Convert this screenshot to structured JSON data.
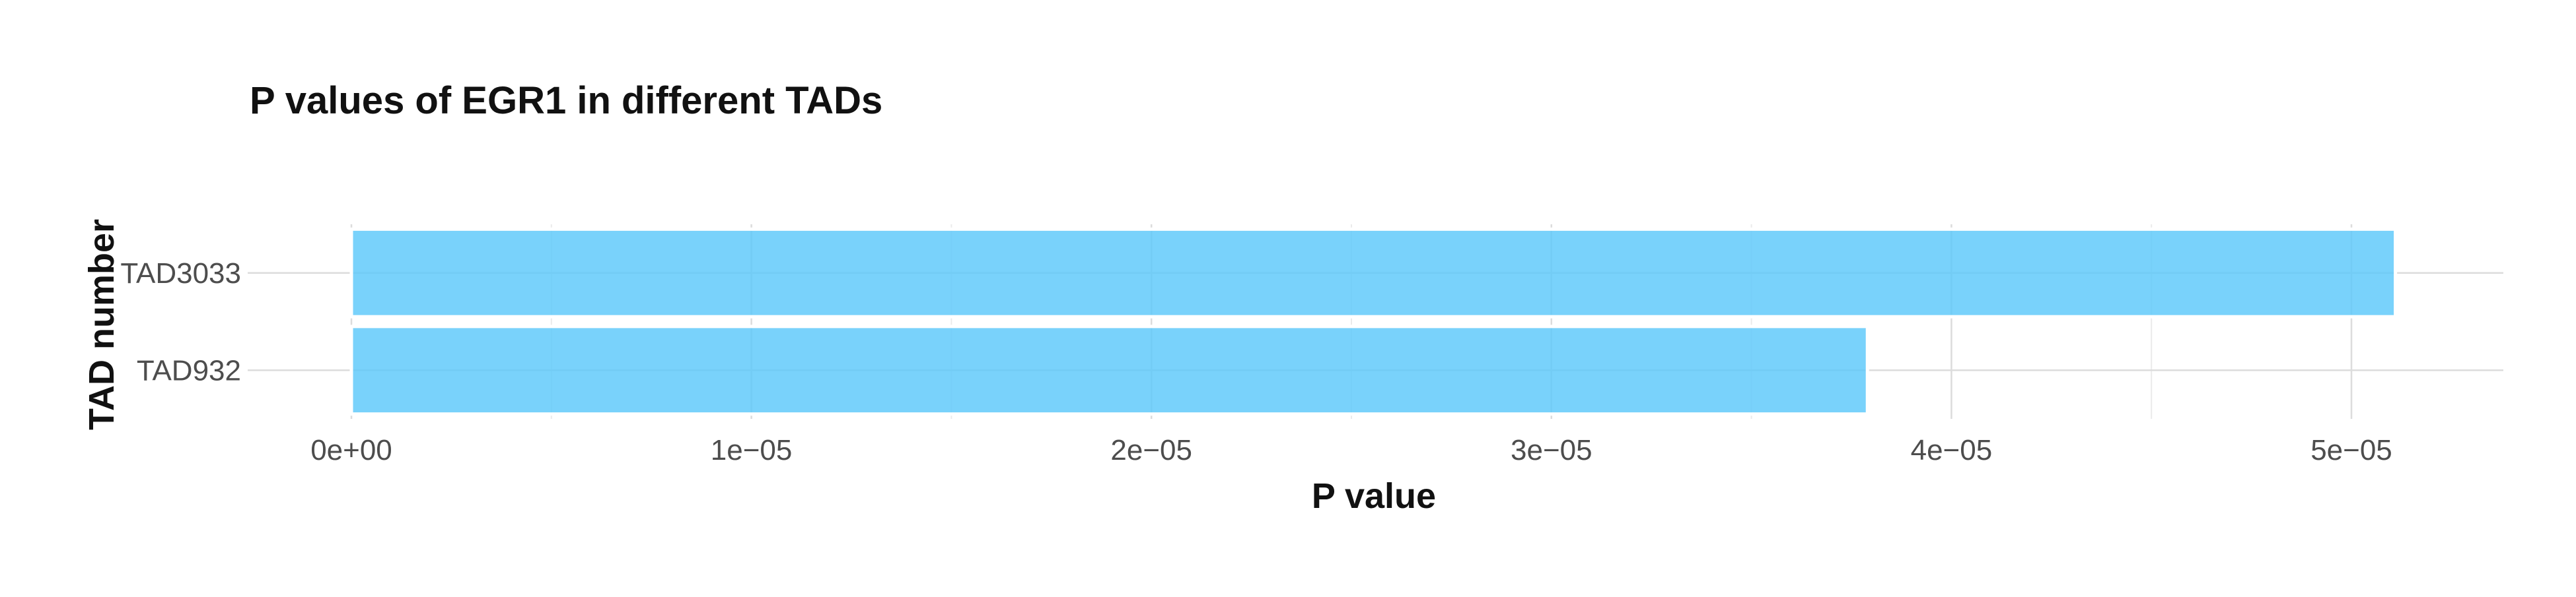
{
  "chart_data": {
    "type": "bar",
    "orientation": "horizontal",
    "title": "P values of EGR1 in different TADs",
    "xlabel": "P value",
    "ylabel": "TAD number",
    "categories": [
      "TAD3033",
      "TAD932"
    ],
    "values": [
      5.11e-05,
      3.79e-05
    ],
    "xlim": [
      0,
      5.4e-05
    ],
    "xticks": [
      0,
      1e-05,
      2e-05,
      3e-05,
      4e-05,
      5e-05
    ],
    "xtick_labels": [
      "0e+00",
      "1e−05",
      "2e−05",
      "3e−05",
      "4e−05",
      "5e−05"
    ],
    "grid": true,
    "legend": "none",
    "bar_color": "#5BC8FA"
  }
}
